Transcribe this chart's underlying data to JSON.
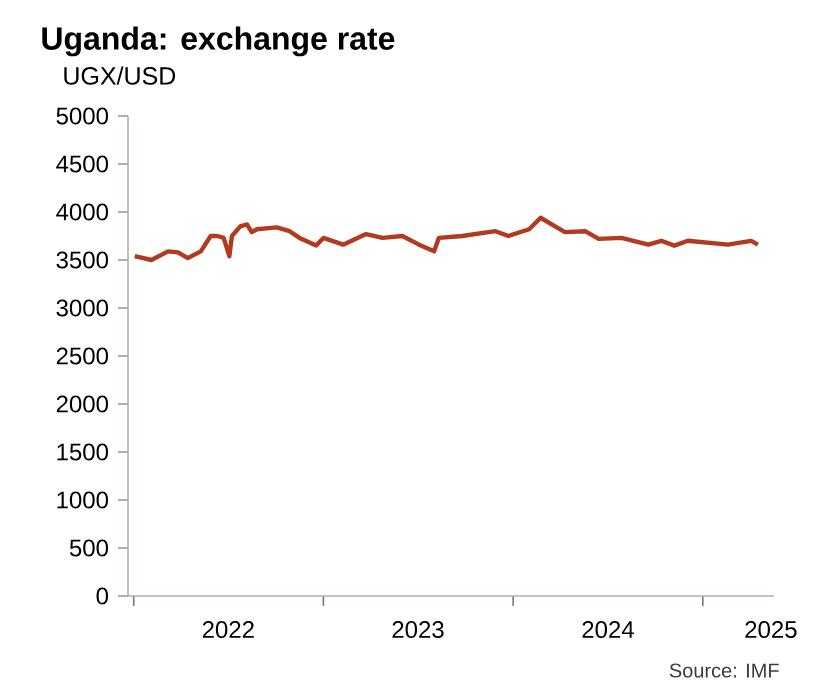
{
  "chart_data": {
    "type": "line",
    "title": "Uganda: exchange rate",
    "ylabel": "UGX/USD",
    "annotations": [
      "Source: IMF"
    ],
    "x": [
      "2022-01-03",
      "2022-02-04",
      "2022-03-08",
      "2022-03-27",
      "2022-04-15",
      "2022-05-10",
      "2022-05-29",
      "2022-06-11",
      "2022-06-23",
      "2022-07-04",
      "2022-07-09",
      "2022-07-25",
      "2022-08-07",
      "2022-08-16",
      "2022-08-26",
      "2022-10-03",
      "2022-10-28",
      "2022-11-16",
      "2022-12-18",
      "2023-01-01",
      "2023-02-08",
      "2023-03-24",
      "2023-04-25",
      "2023-06-02",
      "2023-07-04",
      "2023-08-02",
      "2023-08-11",
      "2023-09-25",
      "2023-11-28",
      "2023-12-23",
      "2024-02-01",
      "2024-02-23",
      "2024-03-22",
      "2024-04-10",
      "2024-05-19",
      "2024-06-14",
      "2024-07-28",
      "2024-09-18",
      "2024-10-13",
      "2024-11-07",
      "2024-12-03",
      "2025-02-18",
      "2025-04-04",
      "2025-04-17"
    ],
    "series": [
      {
        "color": "#b23a1e",
        "values": [
          3540,
          3500,
          3590,
          3580,
          3520,
          3590,
          3750,
          3750,
          3730,
          3540,
          3750,
          3850,
          3870,
          3790,
          3820,
          3840,
          3800,
          3730,
          3650,
          3730,
          3660,
          3770,
          3730,
          3750,
          3660,
          3590,
          3730,
          3750,
          3800,
          3750,
          3820,
          3940,
          3850,
          3790,
          3800,
          3720,
          3730,
          3660,
          3700,
          3650,
          3700,
          3660,
          3700,
          3660
        ]
      }
    ],
    "xlim": [
      "2021-12-21",
      "2025-05-18"
    ],
    "xticks": [
      {
        "value": "2022-01-01",
        "label": null
      },
      {
        "value": "2022-07-02",
        "label": "2022"
      },
      {
        "value": "2023-01-01",
        "label": null
      },
      {
        "value": "2023-07-02",
        "label": "2023"
      },
      {
        "value": "2024-01-01",
        "label": null
      },
      {
        "value": "2024-07-02",
        "label": "2024"
      },
      {
        "value": "2025-01-01",
        "label": null
      },
      {
        "value": "2025-05-12",
        "label": "2025"
      }
    ],
    "ylim": [
      0,
      5000
    ],
    "yticks": [
      0,
      500,
      1000,
      1500,
      2000,
      2500,
      3000,
      3500,
      4000,
      4500,
      5000
    ],
    "grid": false,
    "legend": false,
    "marker": "none",
    "line_style": "solid"
  }
}
